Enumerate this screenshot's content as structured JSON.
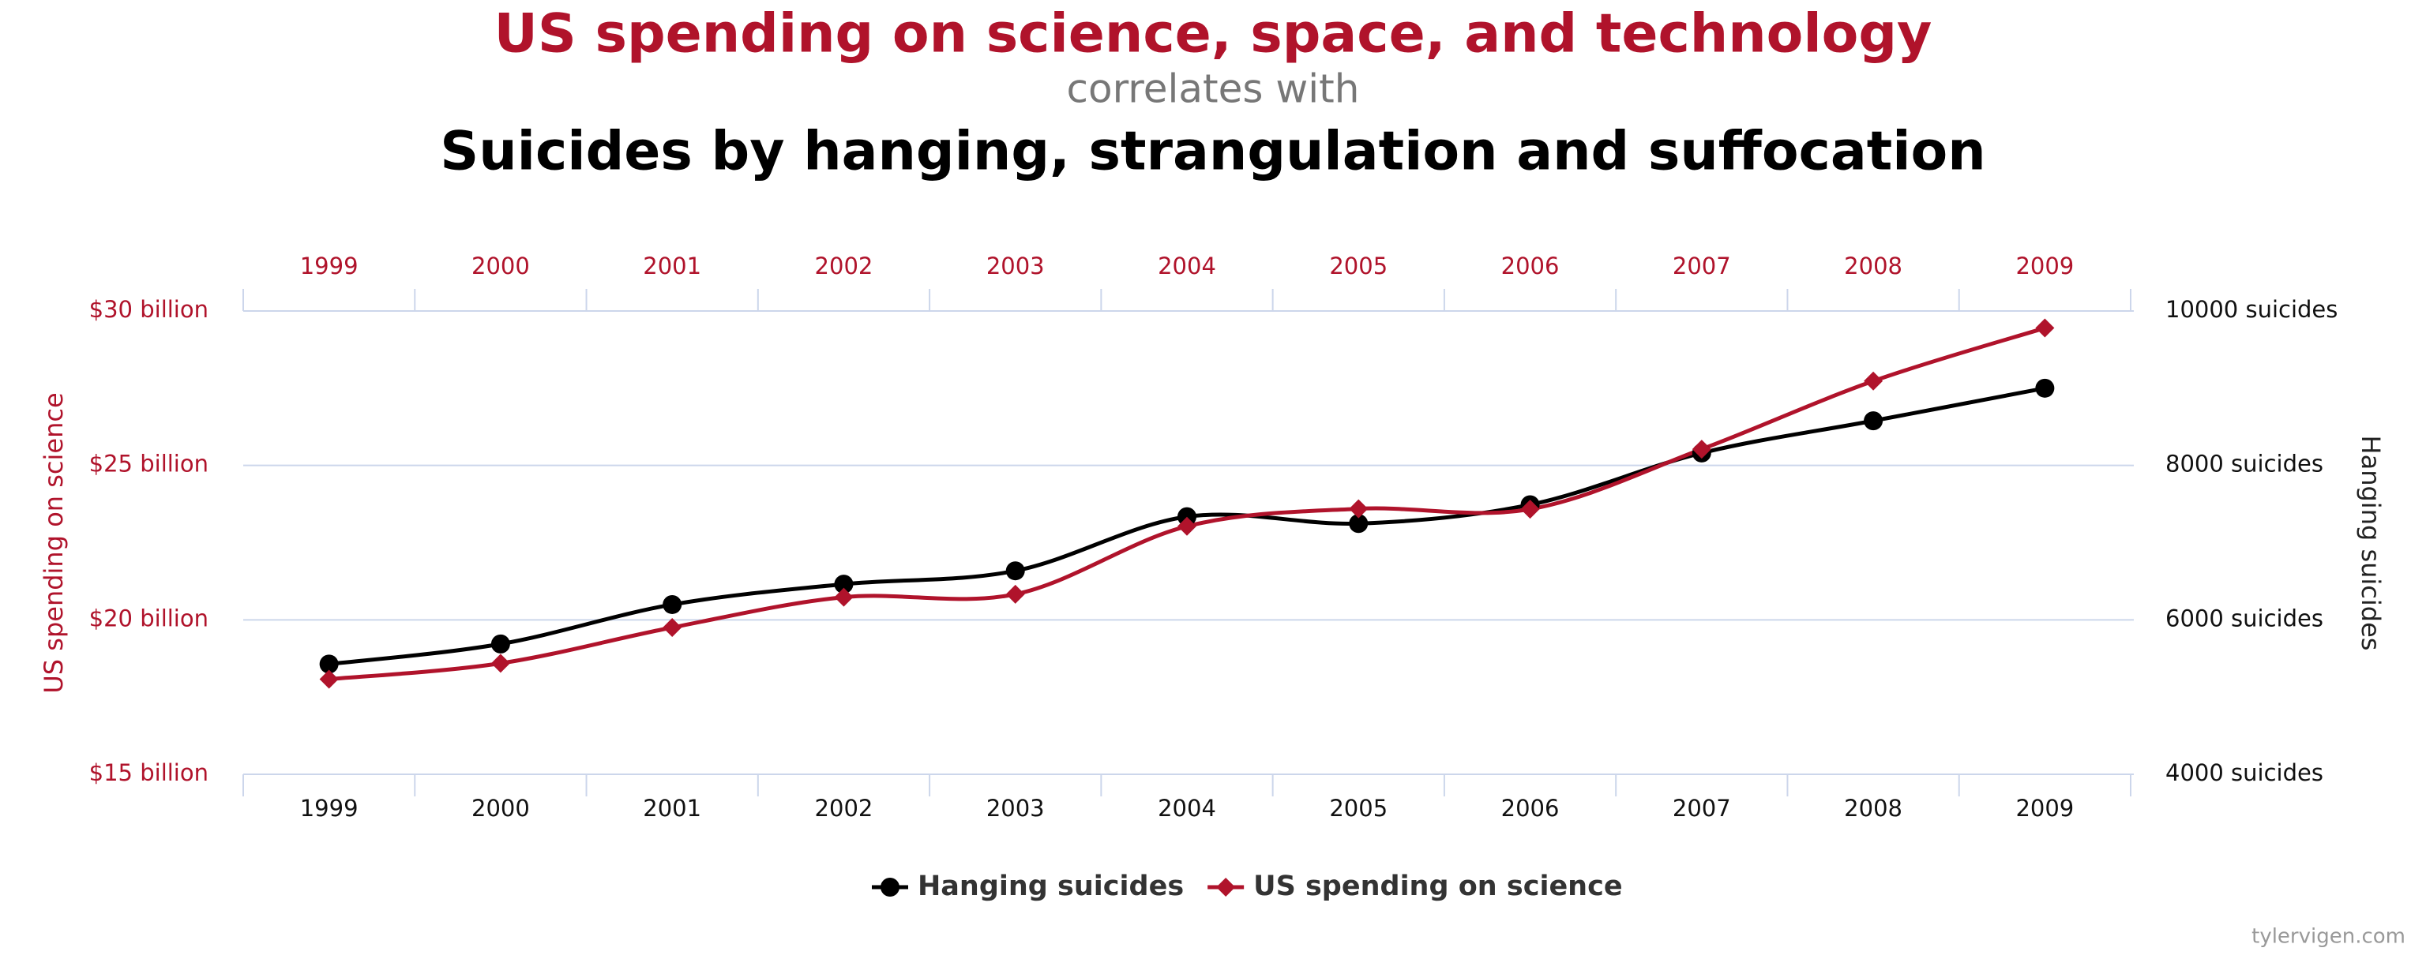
{
  "chart_data": {
    "type": "line",
    "title": "US spending on science, space, and technology",
    "subtitle": "correlates with",
    "title2": "Suicides by hanging, strangulation and suffocation",
    "ylabel": "US spending on science",
    "y2label": "Hanging suicides",
    "source": "tylervigen.com",
    "categories": [
      "1999",
      "2000",
      "2001",
      "2002",
      "2003",
      "2004",
      "2005",
      "2006",
      "2007",
      "2008",
      "2009"
    ],
    "series": [
      {
        "name": "Hanging suicides",
        "color": "#000000",
        "marker": "circle",
        "axis": "y2",
        "values": [
          5427,
          5688,
          6198,
          6462,
          6635,
          7336,
          7248,
          7491,
          8161,
          8578,
          9000
        ]
      },
      {
        "name": "US spending on science",
        "color": "#b0132b",
        "marker": "diamond",
        "axis": "y",
        "values": [
          18.079,
          18.594,
          19.753,
          20.734,
          20.831,
          23.029,
          23.597,
          23.584,
          25.525,
          27.731,
          29.449
        ]
      }
    ],
    "ylim": [
      15,
      30
    ],
    "yticks": [
      {
        "value": 15,
        "label": "$15 billion"
      },
      {
        "value": 20,
        "label": "$20 billion"
      },
      {
        "value": 25,
        "label": "$25 billion"
      },
      {
        "value": 30,
        "label": "$30 billion"
      }
    ],
    "y2lim": [
      4000,
      10000
    ],
    "y2ticks": [
      {
        "value": 4000,
        "label": "4000 suicides"
      },
      {
        "value": 6000,
        "label": "6000 suicides"
      },
      {
        "value": 8000,
        "label": "8000 suicides"
      },
      {
        "value": 10000,
        "label": "10000 suicides"
      }
    ],
    "grid": true
  }
}
